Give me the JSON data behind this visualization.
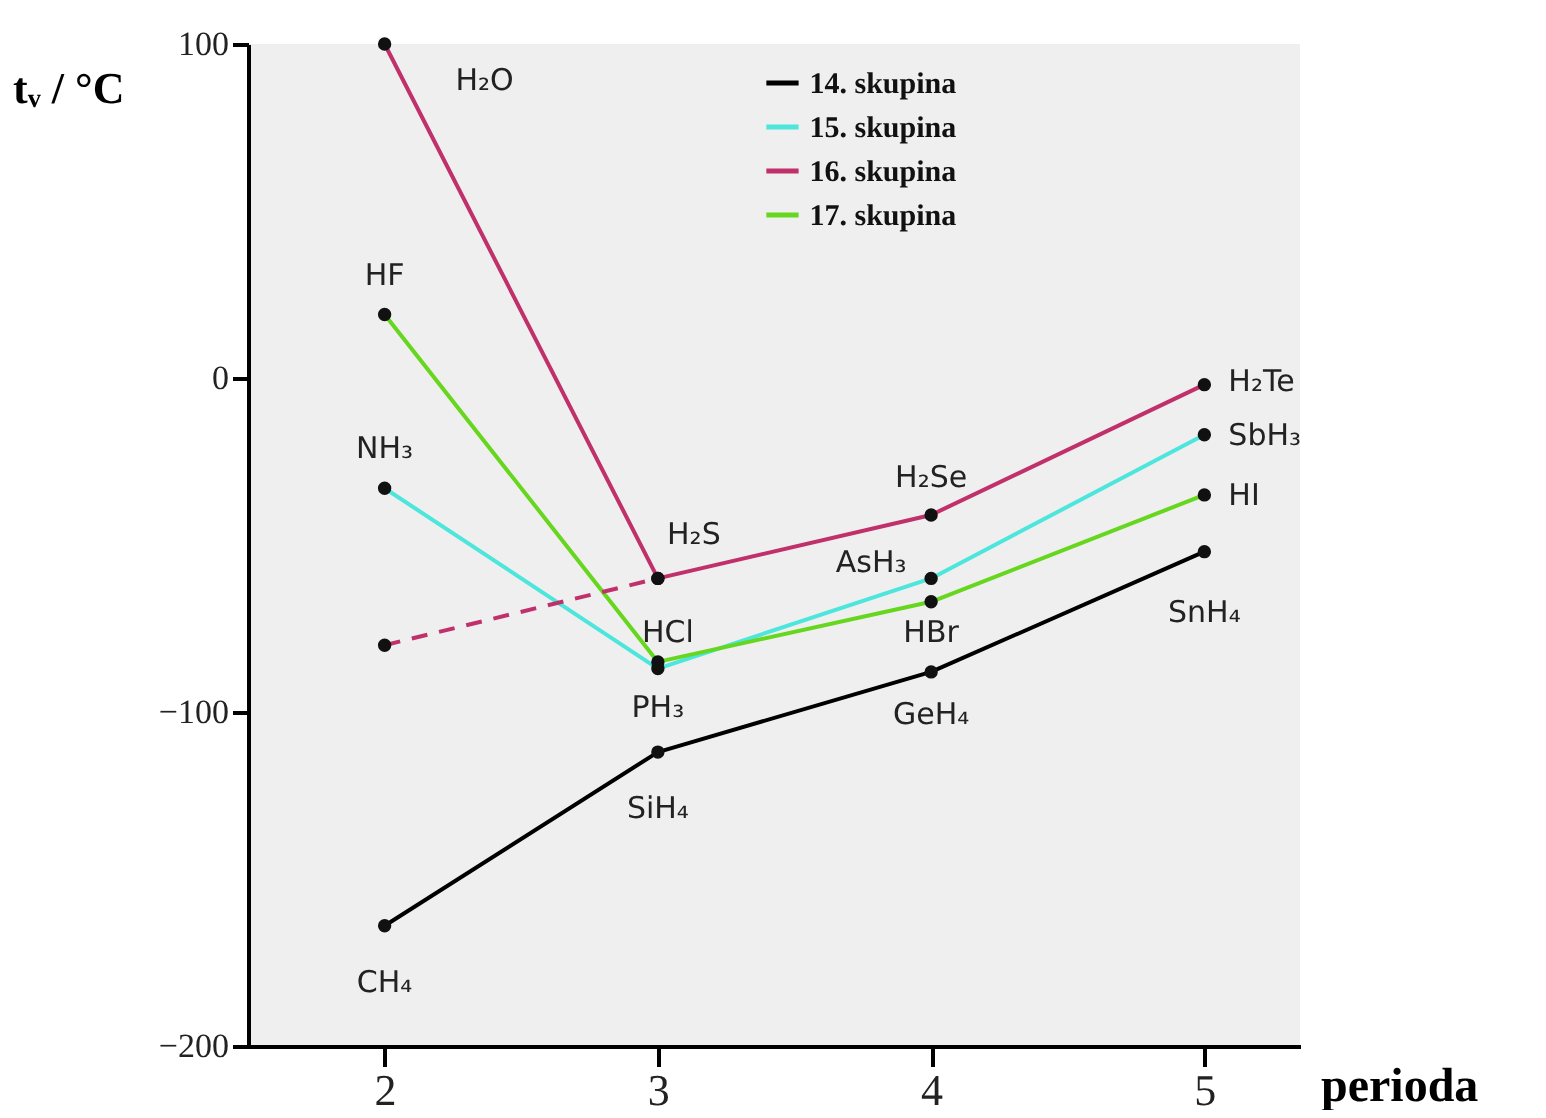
{
  "chart_data": {
    "type": "line",
    "xlabel": "perioda",
    "ylabel": "tᵥ / °C",
    "x": [
      2,
      3,
      4,
      5
    ],
    "series": [
      {
        "name": "14. skupina",
        "color": "#000000",
        "values": [
          -164,
          -112,
          -88,
          -52
        ]
      },
      {
        "name": "15. skupina",
        "color": "#4ce6dc",
        "values": [
          -33,
          -87,
          -60,
          -17
        ]
      },
      {
        "name": "16. skupina",
        "color": "#c0306a",
        "values": [
          100,
          -60,
          -41,
          -2
        ]
      },
      {
        "name": "17. skupina",
        "color": "#66d61e",
        "values": [
          19,
          -85,
          -67,
          -35
        ]
      },
      {
        "color": "#c0306a",
        "x": [
          2,
          3
        ],
        "values": [
          -80,
          -60
        ],
        "line_style": "dashed"
      }
    ],
    "xlim": [
      1.5,
      5.35
    ],
    "ylim": [
      -200,
      100
    ],
    "xticks": [
      2,
      3,
      4,
      5
    ],
    "yticks": [
      -200,
      -100,
      0,
      100
    ],
    "grid": false,
    "legend": "top",
    "marker": "circle",
    "annotations": [
      {
        "text": "H₂O",
        "x": 2,
        "y": 100
      },
      {
        "text": "HF",
        "x": 2,
        "y": 19
      },
      {
        "text": "NH₃",
        "x": 2,
        "y": -33
      },
      {
        "text": "CH₄",
        "x": 2,
        "y": -164
      },
      {
        "text": "H₂S",
        "x": 3,
        "y": -60
      },
      {
        "text": "HCl",
        "x": 3,
        "y": -85
      },
      {
        "text": "PH₃",
        "x": 3,
        "y": -87
      },
      {
        "text": "SiH₄",
        "x": 3,
        "y": -112
      },
      {
        "text": "H₂Se",
        "x": 4,
        "y": -41
      },
      {
        "text": "AsH₃",
        "x": 4,
        "y": -60
      },
      {
        "text": "HBr",
        "x": 4,
        "y": -67
      },
      {
        "text": "GeH₄",
        "x": 4,
        "y": -88
      },
      {
        "text": "H₂Te",
        "x": 5,
        "y": -2
      },
      {
        "text": "SbH₃",
        "x": 5,
        "y": -17
      },
      {
        "text": "HI",
        "x": 5,
        "y": -35
      },
      {
        "text": "SnH₄",
        "x": 5,
        "y": -52
      }
    ]
  }
}
